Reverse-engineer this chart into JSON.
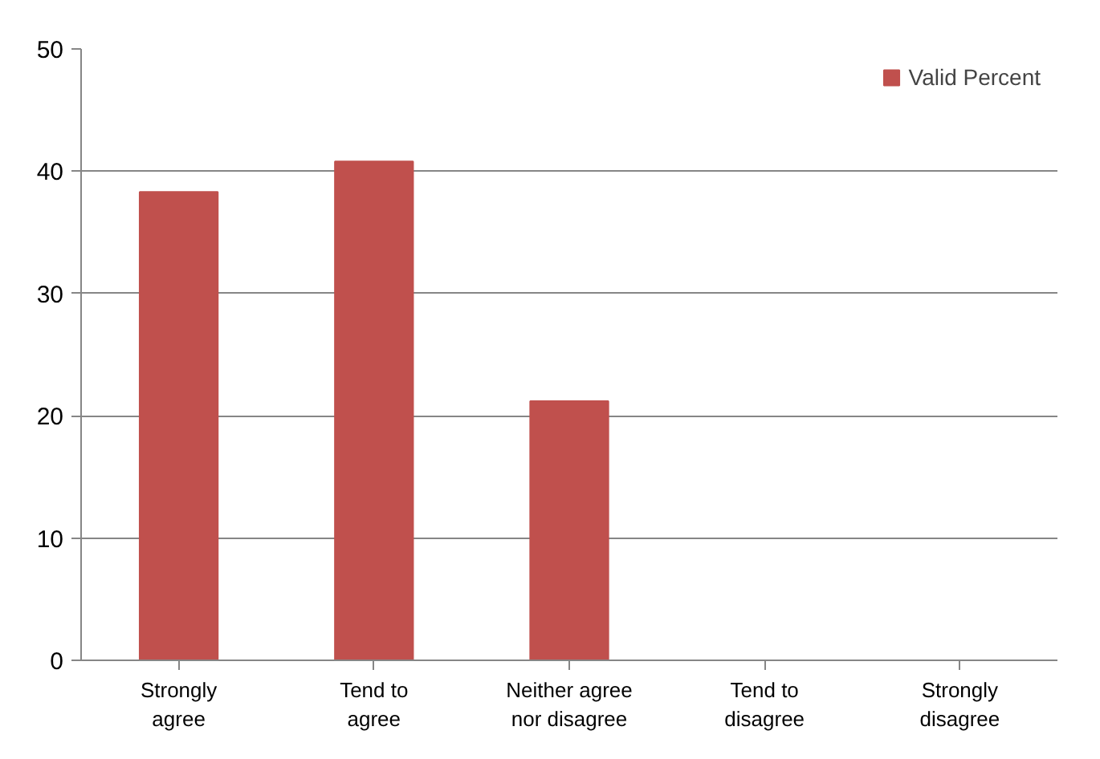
{
  "chart_data": {
    "type": "bar",
    "categories": [
      "Strongly\nagree",
      "Tend to\nagree",
      "Neither agree\nnor disagree",
      "Tend to\ndisagree",
      "Strongly\ndisagree"
    ],
    "series": [
      {
        "name": "Valid Percent",
        "color": "#c0504d",
        "values": [
          38.3,
          40.8,
          21.2,
          null,
          null
        ]
      }
    ],
    "ylim": [
      0,
      50
    ],
    "yticks": [
      0,
      10,
      20,
      30,
      40,
      50
    ],
    "grid": "y",
    "legend": "top right"
  }
}
